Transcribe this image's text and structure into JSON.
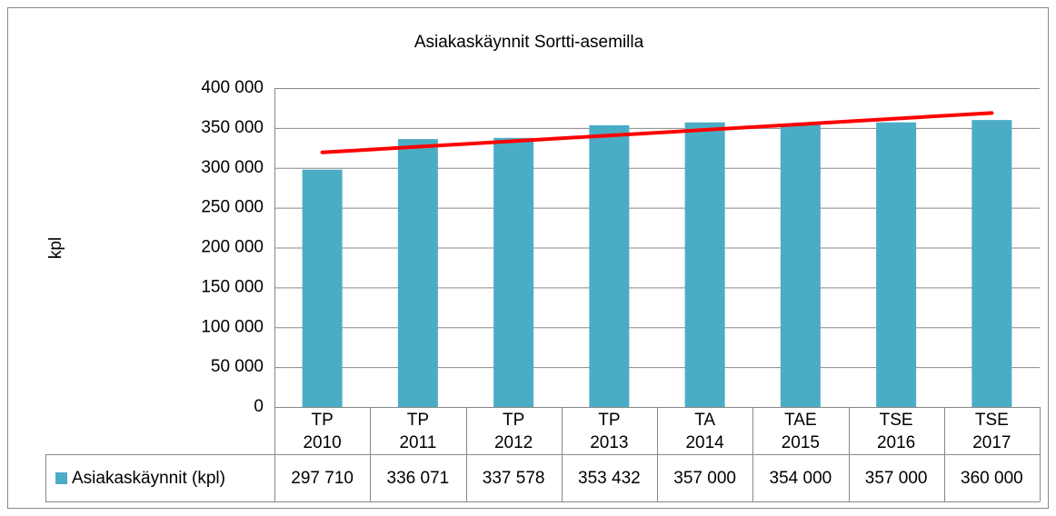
{
  "chart_data": {
    "type": "bar",
    "title": "Asiakaskäynnit Sortti-asemilla",
    "y_label": "kpl",
    "categories": [
      [
        "TP",
        "2010"
      ],
      [
        "TP",
        "2011"
      ],
      [
        "TP",
        "2012"
      ],
      [
        "TP",
        "2013"
      ],
      [
        "TA",
        "2014"
      ],
      [
        "TAE",
        "2015"
      ],
      [
        "TSE",
        "2016"
      ],
      [
        "TSE",
        "2017"
      ]
    ],
    "series": [
      {
        "name": "Asiakaskäynnit (kpl)",
        "color": "#4bacc6",
        "values": [
          297710,
          336071,
          337578,
          353432,
          357000,
          354000,
          357000,
          360000
        ],
        "value_labels": [
          "297 710",
          "336 071",
          "337 578",
          "353 432",
          "357 000",
          "354 000",
          "357 000",
          "360 000"
        ]
      }
    ],
    "ylim": [
      0,
      400000
    ],
    "yticks": [
      0,
      {
        "value": 50000,
        "label": "50 000"
      },
      {
        "value": 100000,
        "label": "100 000"
      },
      {
        "value": 150000,
        "label": "150 000"
      },
      {
        "value": 200000,
        "label": "200 000"
      },
      {
        "value": 250000,
        "label": "250 000"
      },
      {
        "value": 300000,
        "label": "300 000"
      },
      {
        "value": 350000,
        "label": "350 000"
      },
      {
        "value": 400000,
        "label": "400 000"
      }
    ],
    "grid": true,
    "trendline": "linear",
    "trendline_color": "#ff0000",
    "data_table": true
  }
}
